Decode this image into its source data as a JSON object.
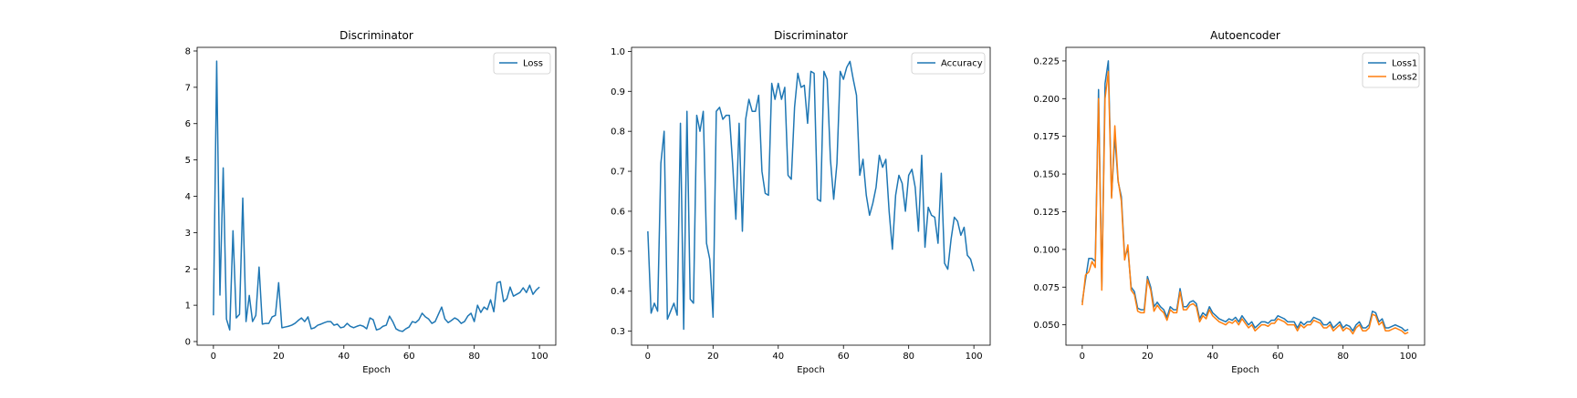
{
  "chart_data": [
    {
      "type": "line",
      "title": "Discriminator",
      "xlabel": "Epoch",
      "ylabel": "",
      "xlim": [
        -5,
        105
      ],
      "ylim": [
        -0.1,
        8.1
      ],
      "xticks": [
        0,
        20,
        40,
        60,
        80,
        100
      ],
      "yticks": [
        0,
        1,
        2,
        3,
        4,
        5,
        6,
        7,
        8
      ],
      "grid": false,
      "legend": "top-right",
      "x": [
        0,
        1,
        2,
        3,
        4,
        5,
        6,
        7,
        8,
        9,
        10,
        11,
        12,
        13,
        14,
        15,
        16,
        17,
        18,
        19,
        20,
        21,
        22,
        23,
        24,
        25,
        26,
        27,
        28,
        29,
        30,
        31,
        32,
        33,
        34,
        35,
        36,
        37,
        38,
        39,
        40,
        41,
        42,
        43,
        44,
        45,
        46,
        47,
        48,
        49,
        50,
        51,
        52,
        53,
        54,
        55,
        56,
        57,
        58,
        59,
        60,
        61,
        62,
        63,
        64,
        65,
        66,
        67,
        68,
        69,
        70,
        71,
        72,
        73,
        74,
        75,
        76,
        77,
        78,
        79,
        80,
        81,
        82,
        83,
        84,
        85,
        86,
        87,
        88,
        89,
        90,
        91,
        92,
        93,
        94,
        95,
        96,
        97,
        98,
        99,
        100
      ],
      "series": [
        {
          "name": "Loss",
          "color": "#1f77b4",
          "values": [
            0.72,
            7.72,
            1.28,
            4.78,
            0.62,
            0.32,
            3.05,
            0.65,
            0.75,
            3.95,
            0.55,
            1.27,
            0.55,
            0.72,
            2.05,
            0.48,
            0.5,
            0.5,
            0.68,
            0.72,
            1.62,
            0.38,
            0.4,
            0.42,
            0.45,
            0.5,
            0.58,
            0.65,
            0.55,
            0.68,
            0.35,
            0.38,
            0.45,
            0.48,
            0.52,
            0.55,
            0.55,
            0.45,
            0.48,
            0.38,
            0.4,
            0.5,
            0.42,
            0.38,
            0.42,
            0.45,
            0.42,
            0.35,
            0.65,
            0.6,
            0.32,
            0.35,
            0.42,
            0.45,
            0.7,
            0.55,
            0.35,
            0.3,
            0.28,
            0.35,
            0.4,
            0.55,
            0.52,
            0.6,
            0.78,
            0.68,
            0.62,
            0.5,
            0.55,
            0.75,
            0.95,
            0.62,
            0.52,
            0.58,
            0.65,
            0.6,
            0.5,
            0.55,
            0.7,
            0.78,
            0.55,
            1.0,
            0.8,
            0.95,
            0.88,
            1.15,
            0.82,
            1.62,
            1.65,
            1.1,
            1.18,
            1.5,
            1.25,
            1.3,
            1.35,
            1.48,
            1.35,
            1.55,
            1.3,
            1.42,
            1.5
          ]
        }
      ]
    },
    {
      "type": "line",
      "title": "Discriminator",
      "xlabel": "Epoch",
      "ylabel": "",
      "xlim": [
        -5,
        105
      ],
      "ylim": [
        0.265,
        1.01
      ],
      "xticks": [
        0,
        20,
        40,
        60,
        80,
        100
      ],
      "yticks": [
        0.3,
        0.4,
        0.5,
        0.6,
        0.7,
        0.8,
        0.9,
        1.0
      ],
      "grid": false,
      "legend": "top-right",
      "x": [
        0,
        1,
        2,
        3,
        4,
        5,
        6,
        7,
        8,
        9,
        10,
        11,
        12,
        13,
        14,
        15,
        16,
        17,
        18,
        19,
        20,
        21,
        22,
        23,
        24,
        25,
        26,
        27,
        28,
        29,
        30,
        31,
        32,
        33,
        34,
        35,
        36,
        37,
        38,
        39,
        40,
        41,
        42,
        43,
        44,
        45,
        46,
        47,
        48,
        49,
        50,
        51,
        52,
        53,
        54,
        55,
        56,
        57,
        58,
        59,
        60,
        61,
        62,
        63,
        64,
        65,
        66,
        67,
        68,
        69,
        70,
        71,
        72,
        73,
        74,
        75,
        76,
        77,
        78,
        79,
        80,
        81,
        82,
        83,
        84,
        85,
        86,
        87,
        88,
        89,
        90,
        91,
        92,
        93,
        94,
        95,
        96,
        97,
        98,
        99,
        100
      ],
      "series": [
        {
          "name": "Accuracy",
          "color": "#1f77b4",
          "values": [
            0.55,
            0.345,
            0.37,
            0.35,
            0.72,
            0.8,
            0.33,
            0.35,
            0.37,
            0.34,
            0.82,
            0.305,
            0.85,
            0.38,
            0.37,
            0.84,
            0.8,
            0.85,
            0.52,
            0.48,
            0.335,
            0.85,
            0.86,
            0.83,
            0.84,
            0.84,
            0.72,
            0.58,
            0.82,
            0.55,
            0.83,
            0.88,
            0.85,
            0.85,
            0.89,
            0.7,
            0.645,
            0.64,
            0.92,
            0.88,
            0.92,
            0.88,
            0.91,
            0.69,
            0.68,
            0.86,
            0.945,
            0.91,
            0.915,
            0.82,
            0.95,
            0.945,
            0.63,
            0.625,
            0.95,
            0.93,
            0.73,
            0.63,
            0.72,
            0.95,
            0.93,
            0.96,
            0.975,
            0.93,
            0.89,
            0.69,
            0.73,
            0.64,
            0.59,
            0.62,
            0.66,
            0.74,
            0.71,
            0.73,
            0.6,
            0.505,
            0.64,
            0.69,
            0.67,
            0.6,
            0.69,
            0.705,
            0.66,
            0.55,
            0.74,
            0.51,
            0.61,
            0.59,
            0.585,
            0.52,
            0.695,
            0.47,
            0.455,
            0.53,
            0.585,
            0.575,
            0.54,
            0.56,
            0.49,
            0.48,
            0.45
          ]
        }
      ]
    },
    {
      "type": "line",
      "title": "Autoencoder",
      "xlabel": "Epoch",
      "ylabel": "",
      "xlim": [
        -5,
        105
      ],
      "ylim": [
        0.0365,
        0.234
      ],
      "xticks": [
        0,
        20,
        40,
        60,
        80,
        100
      ],
      "yticks": [
        0.05,
        0.075,
        0.1,
        0.125,
        0.15,
        0.175,
        0.2,
        0.225
      ],
      "grid": false,
      "legend": "top-right",
      "x": [
        0,
        1,
        2,
        3,
        4,
        5,
        6,
        7,
        8,
        9,
        10,
        11,
        12,
        13,
        14,
        15,
        16,
        17,
        18,
        19,
        20,
        21,
        22,
        23,
        24,
        25,
        26,
        27,
        28,
        29,
        30,
        31,
        32,
        33,
        34,
        35,
        36,
        37,
        38,
        39,
        40,
        41,
        42,
        43,
        44,
        45,
        46,
        47,
        48,
        49,
        50,
        51,
        52,
        53,
        54,
        55,
        56,
        57,
        58,
        59,
        60,
        61,
        62,
        63,
        64,
        65,
        66,
        67,
        68,
        69,
        70,
        71,
        72,
        73,
        74,
        75,
        76,
        77,
        78,
        79,
        80,
        81,
        82,
        83,
        84,
        85,
        86,
        87,
        88,
        89,
        90,
        91,
        92,
        93,
        94,
        95,
        96,
        97,
        98,
        99,
        100
      ],
      "series": [
        {
          "name": "Loss1",
          "color": "#1f77b4",
          "values": [
            0.065,
            0.08,
            0.094,
            0.094,
            0.092,
            0.206,
            0.075,
            0.21,
            0.225,
            0.135,
            0.175,
            0.145,
            0.135,
            0.095,
            0.1,
            0.075,
            0.072,
            0.061,
            0.06,
            0.06,
            0.082,
            0.075,
            0.062,
            0.065,
            0.062,
            0.06,
            0.055,
            0.062,
            0.06,
            0.06,
            0.074,
            0.062,
            0.062,
            0.065,
            0.066,
            0.064,
            0.054,
            0.058,
            0.056,
            0.062,
            0.058,
            0.056,
            0.054,
            0.053,
            0.052,
            0.054,
            0.053,
            0.055,
            0.052,
            0.056,
            0.053,
            0.05,
            0.052,
            0.048,
            0.05,
            0.052,
            0.052,
            0.051,
            0.053,
            0.053,
            0.056,
            0.055,
            0.054,
            0.052,
            0.052,
            0.052,
            0.048,
            0.052,
            0.05,
            0.052,
            0.052,
            0.055,
            0.054,
            0.053,
            0.05,
            0.05,
            0.052,
            0.048,
            0.05,
            0.052,
            0.048,
            0.05,
            0.049,
            0.046,
            0.05,
            0.052,
            0.048,
            0.048,
            0.05,
            0.059,
            0.058,
            0.052,
            0.054,
            0.048,
            0.048,
            0.049,
            0.05,
            0.049,
            0.048,
            0.046,
            0.047
          ]
        },
        {
          "name": "Loss2",
          "color": "#ff7f0e",
          "values": [
            0.063,
            0.083,
            0.085,
            0.092,
            0.088,
            0.2,
            0.073,
            0.2,
            0.218,
            0.134,
            0.182,
            0.146,
            0.132,
            0.093,
            0.103,
            0.073,
            0.07,
            0.059,
            0.058,
            0.058,
            0.08,
            0.073,
            0.059,
            0.063,
            0.06,
            0.058,
            0.053,
            0.06,
            0.058,
            0.058,
            0.072,
            0.06,
            0.06,
            0.063,
            0.064,
            0.062,
            0.052,
            0.056,
            0.054,
            0.06,
            0.056,
            0.054,
            0.052,
            0.051,
            0.05,
            0.052,
            0.051,
            0.053,
            0.05,
            0.054,
            0.051,
            0.048,
            0.05,
            0.046,
            0.048,
            0.05,
            0.05,
            0.049,
            0.051,
            0.051,
            0.054,
            0.053,
            0.052,
            0.05,
            0.05,
            0.05,
            0.046,
            0.05,
            0.048,
            0.05,
            0.05,
            0.053,
            0.052,
            0.051,
            0.048,
            0.048,
            0.05,
            0.046,
            0.048,
            0.05,
            0.046,
            0.048,
            0.047,
            0.044,
            0.048,
            0.05,
            0.046,
            0.046,
            0.048,
            0.057,
            0.056,
            0.05,
            0.052,
            0.046,
            0.046,
            0.047,
            0.048,
            0.047,
            0.046,
            0.044,
            0.045
          ]
        }
      ]
    }
  ]
}
